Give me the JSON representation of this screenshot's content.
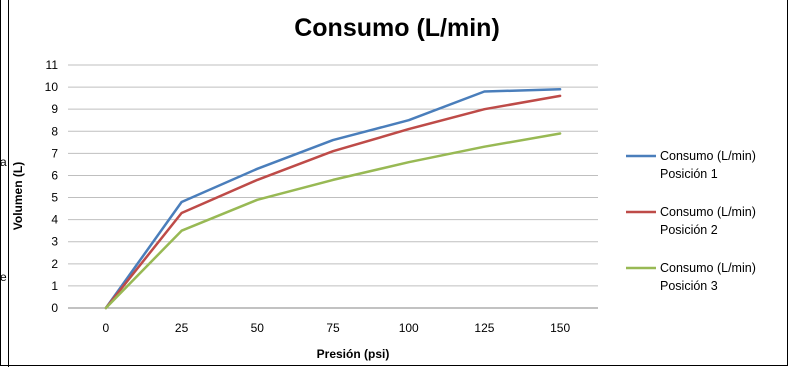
{
  "chart_data": {
    "type": "line",
    "title": "Consumo (L/min)",
    "xlabel": "Presión (psi)",
    "ylabel": "Volumen (L)",
    "x": [
      0,
      25,
      50,
      75,
      100,
      125,
      150
    ],
    "x_tick_labels": [
      "0",
      "25",
      "50",
      "75",
      "100",
      "125",
      "150"
    ],
    "ylim": [
      0,
      11
    ],
    "y_ticks": [
      0,
      1,
      2,
      3,
      4,
      5,
      6,
      7,
      8,
      9,
      10,
      11
    ],
    "grid": true,
    "legend_position": "right",
    "series": [
      {
        "name_line1": "Consumo (L/min)",
        "name_line2": "Posición 1",
        "color": "#4a7ebb",
        "values": [
          0,
          4.8,
          6.3,
          7.6,
          8.5,
          9.8,
          9.9
        ]
      },
      {
        "name_line1": "Consumo (L/min)",
        "name_line2": "Posición 2",
        "color": "#be4b48",
        "values": [
          0,
          4.3,
          5.8,
          7.1,
          8.1,
          9.0,
          9.6
        ]
      },
      {
        "name_line1": "Consumo (L/min)",
        "name_line2": "Posición 3",
        "color": "#98b954",
        "values": [
          0,
          3.5,
          4.9,
          5.8,
          6.6,
          7.3,
          7.9
        ]
      }
    ]
  }
}
